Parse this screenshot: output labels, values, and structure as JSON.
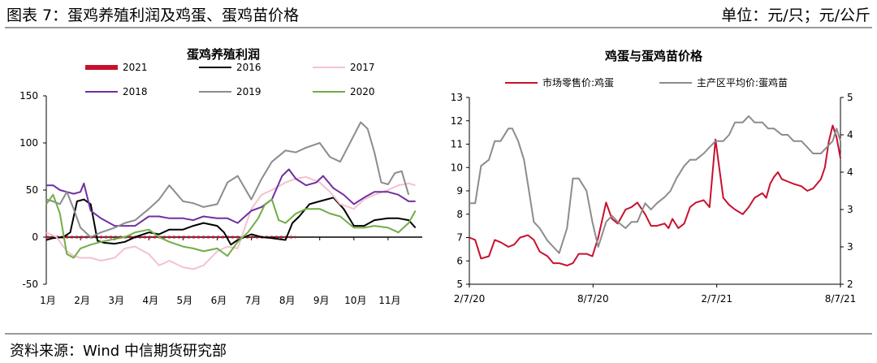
{
  "header": {
    "title": "图表 7：蛋鸡养殖利润及鸡蛋、蛋鸡苗价格",
    "unit": "单位：元/只；元/公斤"
  },
  "footer": {
    "source": "资料来源：Wind 中信期货研究部"
  },
  "chart_data": [
    {
      "type": "line",
      "title": "蛋鸡养殖利润",
      "xlabel": "",
      "ylabel": "",
      "ylim": [
        -50,
        150
      ],
      "yticks": [
        "150",
        "100",
        "50",
        "0",
        "-50"
      ],
      "xticks": [
        "1月",
        "2月",
        "3月",
        "4月",
        "5月",
        "6月",
        "7月",
        "8月",
        "9月",
        "10月",
        "11月"
      ],
      "x_range_months": [
        1,
        12
      ],
      "legend_placement": "top",
      "series": [
        {
          "name": "2021",
          "color": "#c8102e",
          "x": [
            1,
            1.5,
            2,
            2.5,
            3,
            3.5,
            4,
            4.5,
            5,
            5.5,
            6,
            6.5,
            7,
            7.5,
            8,
            8.3
          ],
          "values": [
            0,
            0,
            0,
            0,
            0,
            0,
            0,
            0,
            0,
            0,
            0,
            0,
            0,
            0,
            0,
            0
          ]
        },
        {
          "name": "2016",
          "color": "#000000",
          "x": [
            1,
            1.2,
            1.5,
            1.7,
            1.9,
            2.1,
            2.3,
            2.5,
            2.7,
            3,
            3.3,
            3.6,
            4,
            4.3,
            4.6,
            5,
            5.3,
            5.6,
            6,
            6.2,
            6.4,
            6.6,
            6.8,
            7,
            7.3,
            7.6,
            8,
            8.2,
            8.4,
            8.7,
            9,
            9.2,
            9.4,
            9.7,
            10,
            10.3,
            10.6,
            11,
            11.3,
            11.6,
            11.8
          ],
          "values": [
            -3,
            -1,
            0,
            5,
            38,
            40,
            35,
            -4,
            -6,
            -7,
            -5,
            0,
            5,
            3,
            8,
            8,
            12,
            15,
            12,
            5,
            -8,
            -3,
            0,
            3,
            0,
            -1,
            -3,
            15,
            22,
            35,
            38,
            40,
            42,
            30,
            12,
            12,
            18,
            20,
            20,
            18,
            10
          ]
        },
        {
          "name": "2017",
          "color": "#f4c2cc",
          "x": [
            1,
            1.3,
            1.6,
            1.8,
            2,
            2.3,
            2.6,
            3,
            3.3,
            3.6,
            4,
            4.3,
            4.6,
            5,
            5.3,
            5.6,
            6,
            6.3,
            6.6,
            7,
            7.3,
            7.6,
            8,
            8.3,
            8.6,
            9,
            9.3,
            9.6,
            10,
            10.3,
            10.6,
            11,
            11.3,
            11.6,
            11.8
          ],
          "values": [
            5,
            0,
            -15,
            -20,
            -22,
            -22,
            -25,
            -22,
            -12,
            -10,
            -18,
            -30,
            -25,
            -32,
            -34,
            -30,
            -15,
            -10,
            -12,
            30,
            45,
            50,
            58,
            62,
            64,
            58,
            48,
            35,
            30,
            40,
            45,
            50,
            55,
            57,
            55
          ]
        },
        {
          "name": "2018",
          "color": "#7030a0",
          "x": [
            1,
            1.2,
            1.4,
            1.6,
            1.8,
            2,
            2.1,
            2.3,
            2.6,
            3,
            3.3,
            3.6,
            4,
            4.3,
            4.6,
            5,
            5.3,
            5.6,
            6,
            6.3,
            6.6,
            7,
            7.3,
            7.6,
            7.9,
            8.1,
            8.3,
            8.6,
            8.9,
            9.1,
            9.4,
            9.7,
            10,
            10.3,
            10.6,
            11,
            11.3,
            11.6,
            11.8
          ],
          "values": [
            55,
            55,
            50,
            48,
            46,
            48,
            57,
            28,
            20,
            12,
            12,
            12,
            22,
            22,
            20,
            20,
            18,
            22,
            20,
            20,
            15,
            28,
            32,
            40,
            65,
            72,
            62,
            55,
            58,
            65,
            52,
            45,
            35,
            42,
            48,
            48,
            45,
            38,
            38
          ]
        },
        {
          "name": "2019",
          "color": "#8c8c8c",
          "x": [
            1,
            1.2,
            1.4,
            1.6,
            1.8,
            2,
            2.3,
            2.6,
            3,
            3.3,
            3.6,
            4,
            4.3,
            4.6,
            5,
            5.3,
            5.6,
            6,
            6.3,
            6.6,
            7,
            7.3,
            7.6,
            8,
            8.3,
            8.6,
            9,
            9.3,
            9.6,
            10,
            10.2,
            10.4,
            10.6,
            10.8,
            11,
            11.2,
            11.4,
            11.6
          ],
          "values": [
            40,
            38,
            35,
            48,
            30,
            10,
            0,
            5,
            10,
            15,
            18,
            30,
            40,
            55,
            38,
            36,
            32,
            35,
            58,
            65,
            40,
            62,
            80,
            92,
            90,
            95,
            100,
            85,
            80,
            108,
            122,
            115,
            90,
            58,
            56,
            68,
            70,
            45
          ]
        },
        {
          "name": "2020",
          "color": "#70ad47",
          "x": [
            1,
            1.2,
            1.4,
            1.6,
            1.8,
            2,
            2.3,
            2.6,
            3,
            3.3,
            3.6,
            4,
            4.3,
            4.6,
            5,
            5.3,
            5.6,
            6,
            6.3,
            6.6,
            6.9,
            7.2,
            7.4,
            7.6,
            7.8,
            8,
            8.3,
            8.6,
            9,
            9.3,
            9.6,
            10,
            10.3,
            10.6,
            11,
            11.3,
            11.6,
            11.8
          ],
          "values": [
            35,
            45,
            25,
            -18,
            -22,
            -12,
            -8,
            -5,
            -2,
            0,
            5,
            8,
            0,
            -5,
            -10,
            -12,
            -15,
            -12,
            -20,
            -5,
            5,
            20,
            35,
            40,
            18,
            15,
            25,
            30,
            30,
            25,
            22,
            10,
            10,
            12,
            10,
            5,
            15,
            28
          ]
        }
      ]
    },
    {
      "type": "line",
      "title": "鸡蛋与蛋鸡苗价格",
      "xlabel": "",
      "ylabel": "",
      "ylim": [
        5,
        13
      ],
      "y2lim": [
        2,
        5
      ],
      "yticks": [
        "13",
        "12",
        "11",
        "10",
        "9",
        "8",
        "7",
        "6",
        "5"
      ],
      "y2ticks": [
        "5",
        "4",
        "4",
        "3",
        "3",
        "2"
      ],
      "xticks": [
        "2/7/20",
        "8/7/20",
        "2/7/21",
        "8/7/21"
      ],
      "legend_placement": "top",
      "series": [
        {
          "name": "市场零售价:鸡蛋",
          "color": "#c8102e",
          "axis": "left",
          "x": [
            0,
            0.3,
            0.6,
            1,
            1.3,
            1.6,
            2,
            2.3,
            2.6,
            3,
            3.3,
            3.6,
            4,
            4.3,
            4.6,
            5,
            5.3,
            5.6,
            6,
            6.3,
            6.6,
            7,
            7.3,
            7.6,
            8,
            8.3,
            8.6,
            9,
            9.3,
            9.6,
            10,
            10.2,
            10.4,
            10.7,
            11,
            11.3,
            11.6,
            12,
            12.3,
            12.6,
            13,
            13.3,
            13.6,
            14,
            14.3,
            14.6,
            15,
            15.2,
            15.4,
            15.6,
            15.8,
            16,
            16.3,
            16.6,
            17,
            17.3,
            17.6,
            18,
            18.2,
            18.4,
            18.6,
            18.8,
            19
          ],
          "values": [
            7.0,
            6.9,
            6.1,
            6.2,
            6.9,
            6.8,
            6.6,
            6.7,
            7.0,
            7.1,
            6.9,
            6.4,
            6.2,
            5.9,
            5.9,
            5.8,
            5.9,
            6.3,
            6.3,
            6.2,
            7.0,
            8.5,
            7.8,
            7.6,
            8.2,
            8.3,
            8.5,
            8.0,
            7.5,
            7.5,
            7.6,
            7.4,
            7.8,
            7.4,
            7.6,
            8.3,
            8.5,
            8.6,
            8.3,
            11.2,
            8.7,
            8.4,
            8.2,
            8.0,
            8.3,
            8.7,
            8.9,
            8.7,
            9.3,
            9.6,
            9.8,
            9.5,
            9.4,
            9.3,
            9.2,
            9.0,
            9.1,
            9.5,
            10.0,
            11.1,
            11.8,
            11.3,
            10.4
          ]
        },
        {
          "name": "主产区平均价:蛋鸡苗",
          "color": "#8c8c8c",
          "axis": "right",
          "x": [
            0,
            0.3,
            0.6,
            1,
            1.3,
            1.6,
            2,
            2.2,
            2.5,
            2.8,
            3,
            3.3,
            3.6,
            4,
            4.3,
            4.6,
            5,
            5.3,
            5.6,
            6,
            6.3,
            6.6,
            7,
            7.3,
            7.6,
            8,
            8.3,
            8.6,
            9,
            9.3,
            9.6,
            10,
            10.3,
            10.6,
            11,
            11.3,
            11.6,
            12,
            12.3,
            12.6,
            13,
            13.3,
            13.6,
            14,
            14.3,
            14.6,
            15,
            15.3,
            15.6,
            16,
            16.3,
            16.6,
            17,
            17.3,
            17.6,
            18,
            18.3,
            18.6,
            18.8,
            19
          ],
          "values": [
            3.3,
            3.3,
            3.9,
            4.0,
            4.3,
            4.3,
            4.5,
            4.5,
            4.3,
            4.0,
            3.6,
            3.0,
            2.9,
            2.7,
            2.6,
            2.5,
            2.9,
            3.7,
            3.7,
            3.5,
            3.0,
            2.6,
            3.0,
            3.1,
            3.0,
            2.9,
            3.0,
            3.0,
            3.3,
            3.2,
            3.3,
            3.4,
            3.5,
            3.7,
            3.9,
            4.0,
            4.0,
            4.1,
            4.2,
            4.3,
            4.3,
            4.4,
            4.6,
            4.6,
            4.7,
            4.6,
            4.6,
            4.5,
            4.5,
            4.4,
            4.4,
            4.3,
            4.3,
            4.2,
            4.1,
            4.1,
            4.2,
            4.3,
            4.5,
            4.3
          ]
        }
      ]
    }
  ]
}
